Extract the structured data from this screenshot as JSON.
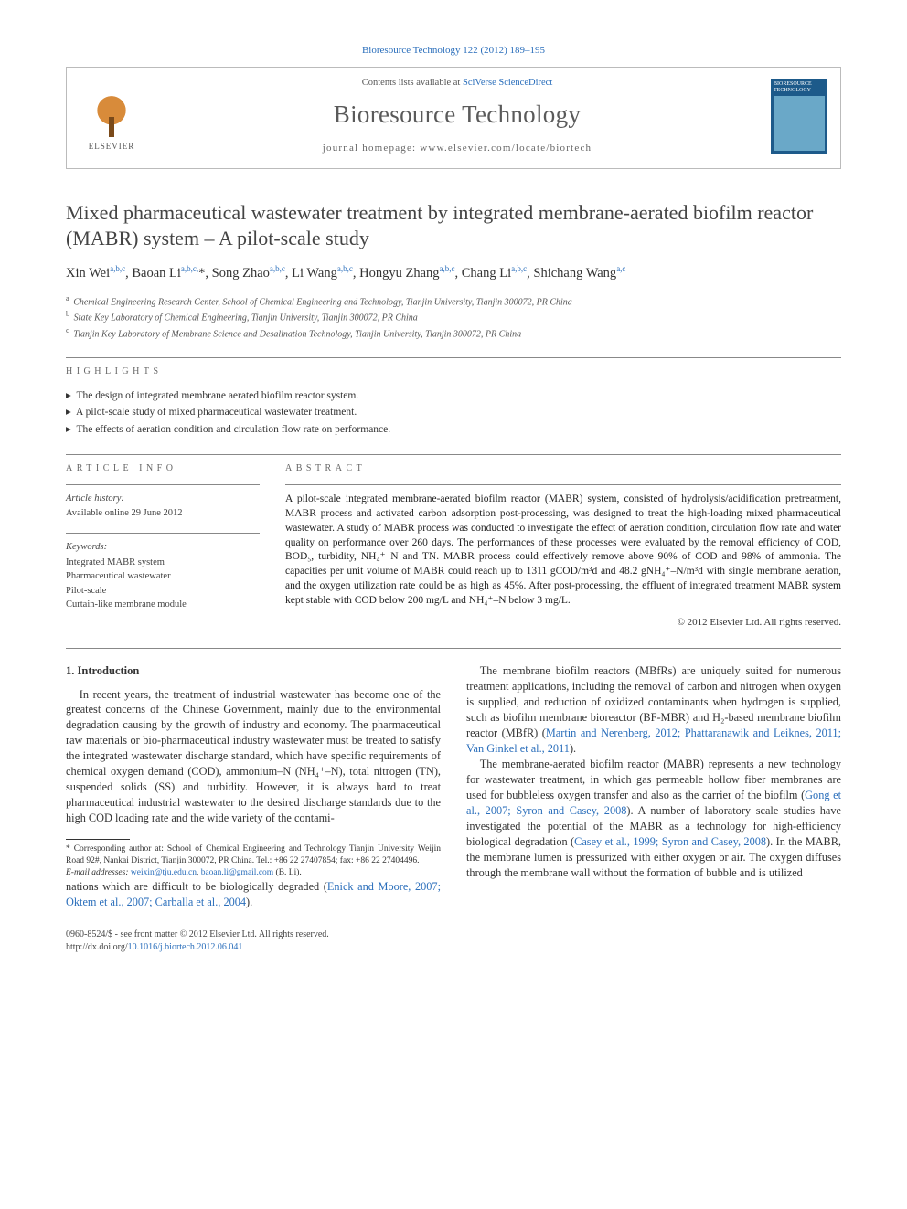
{
  "citation": {
    "journal_link_text": "Bioresource Technology 122 (2012) 189–195"
  },
  "header": {
    "contents_prefix": "Contents lists available at ",
    "contents_link": "SciVerse ScienceDirect",
    "journal_name": "Bioresource Technology",
    "homepage_label": "journal homepage: www.elsevier.com/locate/biortech",
    "publisher_logo_text": "ELSEVIER",
    "cover_label": "BIORESOURCE TECHNOLOGY"
  },
  "article": {
    "title": "Mixed pharmaceutical wastewater treatment by integrated membrane-aerated biofilm reactor (MABR) system – A pilot-scale study",
    "authors_html": "Xin Wei<sup>a,b,c</sup>, Baoan Li<sup>a,b,c,</sup>*, Song Zhao<sup>a,b,c</sup>, Li Wang<sup>a,b,c</sup>, Hongyu Zhang<sup>a,b,c</sup>, Chang Li<sup>a,b,c</sup>, Shichang Wang<sup>a,c</sup>",
    "affiliations": [
      {
        "sup": "a",
        "text": "Chemical Engineering Research Center, School of Chemical Engineering and Technology, Tianjin University, Tianjin 300072, PR China"
      },
      {
        "sup": "b",
        "text": "State Key Laboratory of Chemical Engineering, Tianjin University, Tianjin 300072, PR China"
      },
      {
        "sup": "c",
        "text": "Tianjin Key Laboratory of Membrane Science and Desalination Technology, Tianjin University, Tianjin 300072, PR China"
      }
    ]
  },
  "highlights": {
    "label": "HIGHLIGHTS",
    "items": [
      "The design of integrated membrane aerated biofilm reactor system.",
      "A pilot-scale study of mixed pharmaceutical wastewater treatment.",
      "The effects of aeration condition and circulation flow rate on performance."
    ]
  },
  "article_info": {
    "label": "ARTICLE INFO",
    "history_heading": "Article history:",
    "history_text": "Available online 29 June 2012",
    "keywords_heading": "Keywords:",
    "keywords": [
      "Integrated MABR system",
      "Pharmaceutical wastewater",
      "Pilot-scale",
      "Curtain-like membrane module"
    ]
  },
  "abstract": {
    "label": "ABSTRACT",
    "text": "A pilot-scale integrated membrane-aerated biofilm reactor (MABR) system, consisted of hydrolysis/acidification pretreatment, MABR process and activated carbon adsorption post-processing, was designed to treat the high-loading mixed pharmaceutical wastewater. A study of MABR process was conducted to investigate the effect of aeration condition, circulation flow rate and water quality on performance over 260 days. The performances of these processes were evaluated by the removal efficiency of COD, BOD₅, turbidity, NH₄⁺–N and TN. MABR process could effectively remove above 90% of COD and 98% of ammonia. The capacities per unit volume of MABR could reach up to 1311 gCOD/m³d and 48.2 gNH₄⁺–N/m³d with single membrane aeration, and the oxygen utilization rate could be as high as 45%. After post-processing, the effluent of integrated treatment MABR system kept stable with COD below 200 mg/L and NH₄⁺–N below 3 mg/L.",
    "copyright": "© 2012 Elsevier Ltd. All rights reserved."
  },
  "body": {
    "intro_heading": "1. Introduction",
    "p1": "In recent years, the treatment of industrial wastewater has become one of the greatest concerns of the Chinese Government, mainly due to the environmental degradation causing by the growth of industry and economy. The pharmaceutical raw materials or bio-pharmaceutical industry wastewater must be treated to satisfy the integrated wastewater discharge standard, which have specific requirements of chemical oxygen demand (COD), ammonium–N (NH₄⁺–N), total nitrogen (TN), suspended solids (SS) and turbidity. However, it is always hard to treat pharmaceutical industrial wastewater to the desired discharge standards due to the high COD loading rate and the wide variety of the contami",
    "p1b_prefix": "nations which are difficult to be biologically degraded (",
    "p1b_link": "Enick and Moore, 2007; Oktem et al., 2007; Carballa et al., 2004",
    "p1b_suffix": ").",
    "p2_prefix": "The membrane biofilm reactors (MBfRs) are uniquely suited for numerous treatment applications, including the removal of carbon and nitrogen when oxygen is supplied, and reduction of oxidized contaminants when hydrogen is supplied, such as biofilm membrane bioreactor (BF-MBR) and H₂-based membrane biofilm reactor (MBfR) (",
    "p2_link": "Martin and Nerenberg, 2012; Phattaranawik and Leiknes, 2011; Van Ginkel et al., 2011",
    "p2_suffix": ").",
    "p3_prefix": "The membrane-aerated biofilm reactor (MABR) represents a new technology for wastewater treatment, in which gas permeable hollow fiber membranes are used for bubbleless oxygen transfer and also as the carrier of the biofilm (",
    "p3_link1": "Gong et al., 2007; Syron and Casey, 2008",
    "p3_mid": "). A number of laboratory scale studies have investigated the potential of the MABR as a technology for high-efficiency biological degradation (",
    "p3_link2": "Casey et al., 1999; Syron and Casey, 2008",
    "p3_suffix": "). In the MABR, the membrane lumen is pressurized with either oxygen or air. The oxygen diffuses through the membrane wall without the formation of bubble and is utilized"
  },
  "footnotes": {
    "corr": "* Corresponding author at: School of Chemical Engineering and Technology Tianjin University Weijin Road 92#, Nankai District, Tianjin 300072, PR China. Tel.: +86 22 27407854; fax: +86 22 27404496.",
    "email_label": "E-mail addresses: ",
    "email1": "weixin@tju.edu.cn",
    "email_sep": ", ",
    "email2": "baoan.li@gmail.com",
    "email_tail": " (B. Li)."
  },
  "footer": {
    "line1": "0960-8524/$ - see front matter © 2012 Elsevier Ltd. All rights reserved.",
    "doi_label": "http://dx.doi.org/",
    "doi": "10.1016/j.biortech.2012.06.041"
  },
  "colors": {
    "link": "#2a6ebb",
    "text": "#333333",
    "rule": "#888888",
    "cover_bg": "#1d5a8a"
  }
}
